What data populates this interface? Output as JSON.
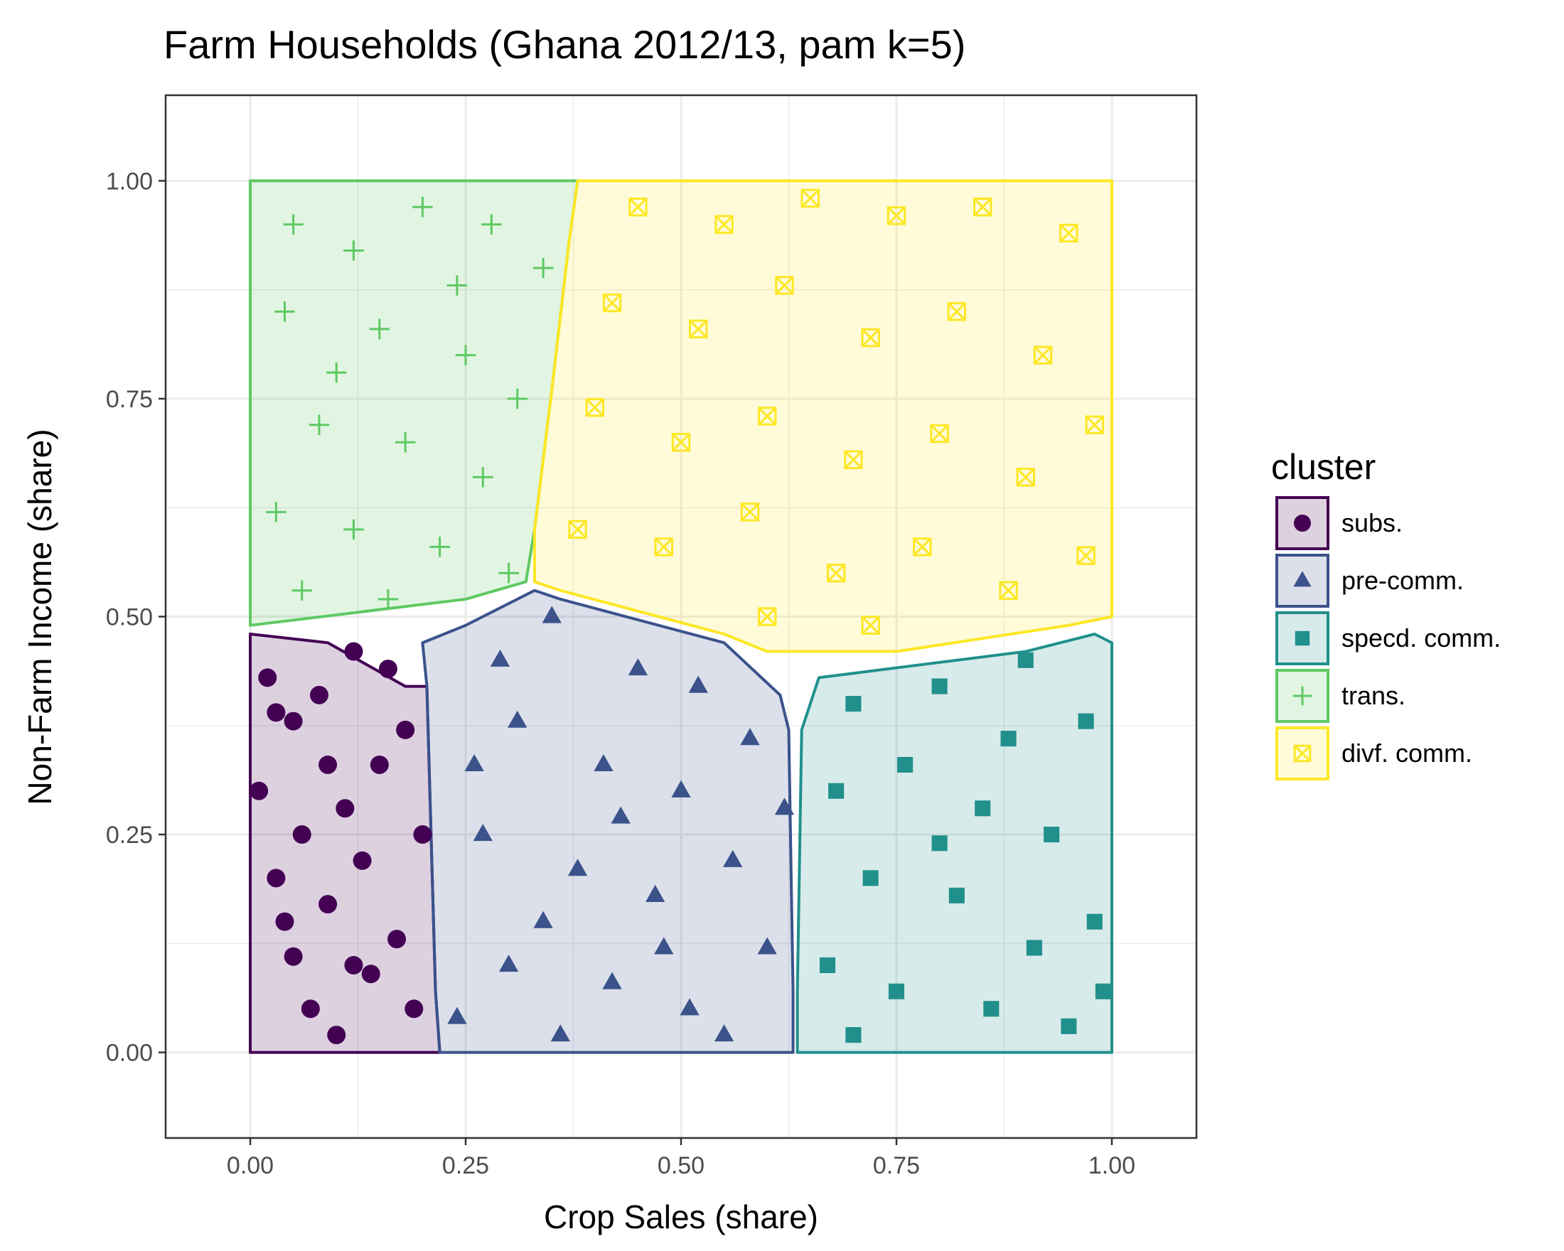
{
  "chart_data": {
    "type": "scatter",
    "title": "Farm Households (Ghana 2012/13, pam k=5)",
    "xlabel": "Crop Sales (share)",
    "ylabel": "Non-Farm Income (share)",
    "xlim": [
      -0.0982,
      1.0982
    ],
    "ylim": [
      -0.0982,
      1.0982
    ],
    "xticks": [
      "0.00",
      "0.25",
      "0.50",
      "0.75",
      "1.00"
    ],
    "yticks": [
      "0.00",
      "0.25",
      "0.50",
      "0.75",
      "1.00"
    ],
    "xtick_values": [
      0,
      0.25,
      0.5,
      0.75,
      1.0
    ],
    "ytick_values": [
      0,
      0.25,
      0.5,
      0.75,
      1.0
    ],
    "grid": true,
    "legend": {
      "title": "cluster",
      "position": "right"
    },
    "series": [
      {
        "name": "subs.",
        "color": "#440154",
        "marker": "circle",
        "hull": [
          [
            0.0,
            0.0
          ],
          [
            0.22,
            0.0
          ],
          [
            0.215,
            0.07
          ],
          [
            0.205,
            0.42
          ],
          [
            0.18,
            0.42
          ],
          [
            0.09,
            0.47
          ],
          [
            0.0,
            0.48
          ]
        ],
        "points": [
          [
            0.03,
            0.39
          ],
          [
            0.05,
            0.38
          ],
          [
            0.09,
            0.33
          ],
          [
            0.12,
            0.46
          ],
          [
            0.15,
            0.33
          ],
          [
            0.06,
            0.25
          ],
          [
            0.11,
            0.28
          ],
          [
            0.18,
            0.37
          ],
          [
            0.04,
            0.15
          ],
          [
            0.09,
            0.17
          ],
          [
            0.14,
            0.09
          ],
          [
            0.07,
            0.05
          ],
          [
            0.02,
            0.43
          ],
          [
            0.13,
            0.22
          ],
          [
            0.17,
            0.13
          ],
          [
            0.19,
            0.05
          ],
          [
            0.05,
            0.11
          ],
          [
            0.1,
            0.02
          ],
          [
            0.16,
            0.44
          ],
          [
            0.08,
            0.41
          ],
          [
            0.01,
            0.3
          ],
          [
            0.12,
            0.1
          ],
          [
            0.2,
            0.25
          ],
          [
            0.03,
            0.2
          ]
        ]
      },
      {
        "name": "pre-comm.",
        "color": "#3b528b",
        "marker": "triangle",
        "hull": [
          [
            0.22,
            0.0
          ],
          [
            0.63,
            0.0
          ],
          [
            0.63,
            0.07
          ],
          [
            0.625,
            0.37
          ],
          [
            0.615,
            0.41
          ],
          [
            0.55,
            0.47
          ],
          [
            0.36,
            0.52
          ],
          [
            0.33,
            0.53
          ],
          [
            0.25,
            0.49
          ],
          [
            0.2,
            0.47
          ],
          [
            0.205,
            0.42
          ],
          [
            0.215,
            0.07
          ]
        ],
        "points": [
          [
            0.35,
            0.5
          ],
          [
            0.45,
            0.44
          ],
          [
            0.52,
            0.42
          ],
          [
            0.31,
            0.38
          ],
          [
            0.41,
            0.33
          ],
          [
            0.5,
            0.3
          ],
          [
            0.58,
            0.36
          ],
          [
            0.27,
            0.25
          ],
          [
            0.38,
            0.21
          ],
          [
            0.47,
            0.18
          ],
          [
            0.56,
            0.22
          ],
          [
            0.6,
            0.12
          ],
          [
            0.3,
            0.1
          ],
          [
            0.42,
            0.08
          ],
          [
            0.51,
            0.05
          ],
          [
            0.24,
            0.04
          ],
          [
            0.36,
            0.02
          ],
          [
            0.55,
            0.02
          ],
          [
            0.29,
            0.45
          ],
          [
            0.43,
            0.27
          ],
          [
            0.62,
            0.28
          ],
          [
            0.34,
            0.15
          ],
          [
            0.48,
            0.12
          ],
          [
            0.26,
            0.33
          ]
        ]
      },
      {
        "name": "specd. comm.",
        "color": "#21908c",
        "marker": "square",
        "hull": [
          [
            0.635,
            0.0
          ],
          [
            1.0,
            0.0
          ],
          [
            1.0,
            0.47
          ],
          [
            0.98,
            0.48
          ],
          [
            0.9,
            0.46
          ],
          [
            0.66,
            0.43
          ],
          [
            0.64,
            0.37
          ],
          [
            0.635,
            0.07
          ]
        ],
        "points": [
          [
            0.7,
            0.4
          ],
          [
            0.8,
            0.42
          ],
          [
            0.9,
            0.45
          ],
          [
            0.97,
            0.38
          ],
          [
            0.68,
            0.3
          ],
          [
            0.76,
            0.33
          ],
          [
            0.85,
            0.28
          ],
          [
            0.93,
            0.25
          ],
          [
            0.72,
            0.2
          ],
          [
            0.82,
            0.18
          ],
          [
            0.91,
            0.12
          ],
          [
            0.98,
            0.15
          ],
          [
            0.67,
            0.1
          ],
          [
            0.75,
            0.07
          ],
          [
            0.86,
            0.05
          ],
          [
            0.95,
            0.03
          ],
          [
            0.7,
            0.02
          ],
          [
            0.8,
            0.24
          ],
          [
            0.88,
            0.36
          ],
          [
            0.99,
            0.07
          ]
        ]
      },
      {
        "name": "trans.",
        "color": "#5ec962",
        "marker": "plus",
        "hull": [
          [
            0.0,
            1.0
          ],
          [
            0.38,
            1.0
          ],
          [
            0.37,
            0.93
          ],
          [
            0.35,
            0.76
          ],
          [
            0.33,
            0.6
          ],
          [
            0.32,
            0.54
          ],
          [
            0.25,
            0.52
          ],
          [
            0.0,
            0.49
          ]
        ],
        "points": [
          [
            0.05,
            0.95
          ],
          [
            0.12,
            0.92
          ],
          [
            0.2,
            0.97
          ],
          [
            0.28,
            0.95
          ],
          [
            0.34,
            0.9
          ],
          [
            0.04,
            0.85
          ],
          [
            0.15,
            0.83
          ],
          [
            0.25,
            0.8
          ],
          [
            0.31,
            0.75
          ],
          [
            0.08,
            0.72
          ],
          [
            0.18,
            0.7
          ],
          [
            0.27,
            0.66
          ],
          [
            0.03,
            0.62
          ],
          [
            0.12,
            0.6
          ],
          [
            0.22,
            0.58
          ],
          [
            0.3,
            0.55
          ],
          [
            0.06,
            0.53
          ],
          [
            0.16,
            0.52
          ],
          [
            0.1,
            0.78
          ],
          [
            0.24,
            0.88
          ]
        ]
      },
      {
        "name": "divf. comm.",
        "color": "#fde725",
        "marker": "square-x",
        "hull": [
          [
            0.38,
            1.0
          ],
          [
            1.0,
            1.0
          ],
          [
            1.0,
            0.5
          ],
          [
            0.95,
            0.49
          ],
          [
            0.75,
            0.46
          ],
          [
            0.6,
            0.46
          ],
          [
            0.55,
            0.48
          ],
          [
            0.36,
            0.53
          ],
          [
            0.33,
            0.54
          ],
          [
            0.33,
            0.6
          ],
          [
            0.35,
            0.76
          ],
          [
            0.37,
            0.93
          ]
        ],
        "points": [
          [
            0.45,
            0.97
          ],
          [
            0.55,
            0.95
          ],
          [
            0.65,
            0.98
          ],
          [
            0.75,
            0.96
          ],
          [
            0.85,
            0.97
          ],
          [
            0.95,
            0.94
          ],
          [
            0.42,
            0.86
          ],
          [
            0.52,
            0.83
          ],
          [
            0.62,
            0.88
          ],
          [
            0.72,
            0.82
          ],
          [
            0.82,
            0.85
          ],
          [
            0.92,
            0.8
          ],
          [
            0.4,
            0.74
          ],
          [
            0.5,
            0.7
          ],
          [
            0.6,
            0.73
          ],
          [
            0.7,
            0.68
          ],
          [
            0.8,
            0.71
          ],
          [
            0.9,
            0.66
          ],
          [
            0.98,
            0.72
          ],
          [
            0.38,
            0.6
          ],
          [
            0.48,
            0.58
          ],
          [
            0.58,
            0.62
          ],
          [
            0.68,
            0.55
          ],
          [
            0.78,
            0.58
          ],
          [
            0.88,
            0.53
          ],
          [
            0.97,
            0.57
          ],
          [
            0.6,
            0.5
          ],
          [
            0.72,
            0.49
          ]
        ]
      }
    ]
  }
}
